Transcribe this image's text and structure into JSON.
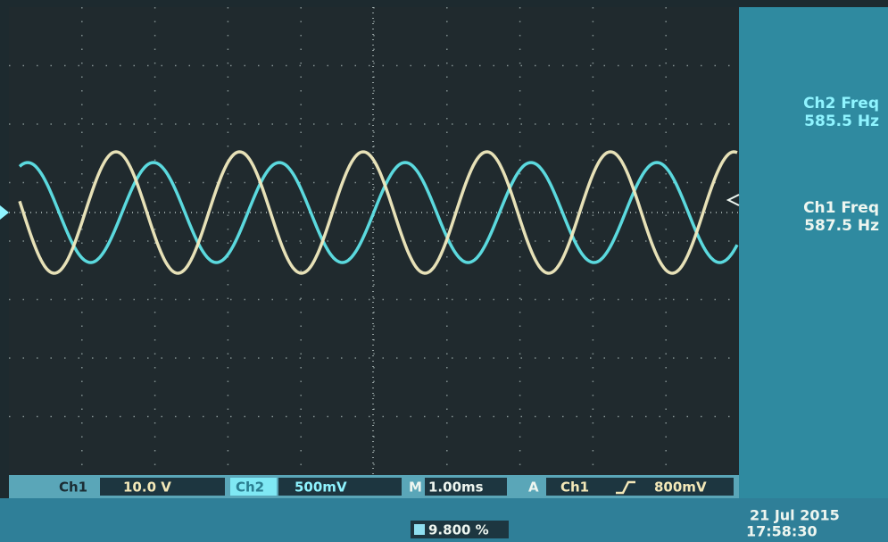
{
  "measurements": [
    {
      "label": "Ch2 Freq",
      "value": "585.5 Hz"
    },
    {
      "label": "Ch1 Freq",
      "value": "587.5 Hz"
    }
  ],
  "status_bar": {
    "ch1_label": "Ch1",
    "ch1_scale": "10.0 V",
    "ch2_label": "Ch2",
    "ch2_scale": "500mV",
    "time_label": "M",
    "time_scale": "1.00ms",
    "trigger_label": "A",
    "trigger_source": "Ch1",
    "trigger_level": "800mV"
  },
  "trigger_position": "9.800 %",
  "date": "21 Jul 2015",
  "time": "17:58:30"
}
